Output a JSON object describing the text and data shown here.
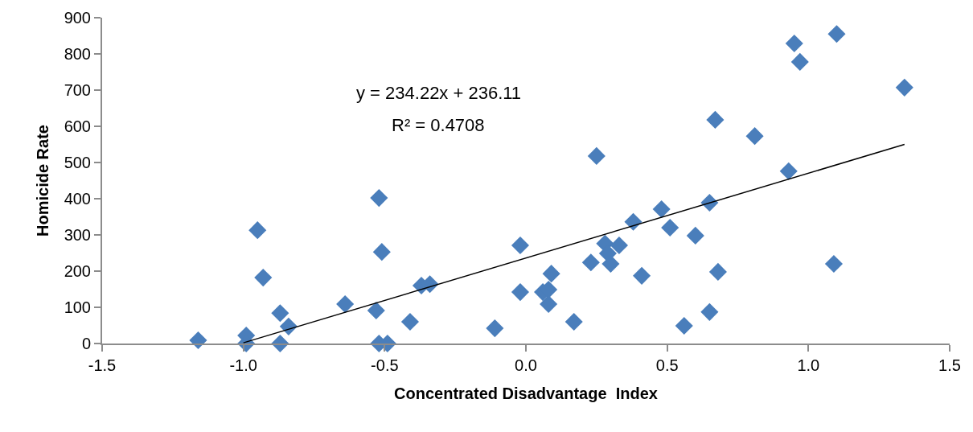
{
  "chart_data": {
    "type": "scatter",
    "xlabel": "Concentrated Disadvantage  Index",
    "ylabel": "Homicide Rate",
    "xlim": [
      -1.5,
      1.5
    ],
    "xticks": [
      {
        "value": -1.5,
        "label": "-1.5"
      },
      {
        "value": -1,
        "label": "-1.0"
      },
      {
        "value": -0.5,
        "label": "-0.5"
      },
      {
        "value": 0,
        "label": "0.0"
      },
      {
        "value": 0.5,
        "label": "0.5"
      },
      {
        "value": 1,
        "label": "1.0"
      },
      {
        "value": 1.5,
        "label": "1.5"
      }
    ],
    "ylim": [
      0,
      900
    ],
    "yticks": [
      0,
      100,
      200,
      300,
      400,
      500,
      600,
      700,
      800,
      900
    ],
    "grid": false,
    "marker": "diamond",
    "series": [
      {
        "color": "#4a7ebb",
        "x": [
          -1.16,
          -0.99,
          -0.99,
          -0.95,
          -0.93,
          -0.87,
          -0.87,
          -0.84,
          -0.64,
          -0.53,
          -0.52,
          -0.51,
          -0.52,
          -0.49,
          -0.41,
          -0.37,
          -0.34,
          -0.11,
          -0.02,
          -0.02,
          0.06,
          0.09,
          0.08,
          0.08,
          0.17,
          0.23,
          0.28,
          0.33,
          0.3,
          0.29,
          0.41,
          0.38,
          0.48,
          0.51,
          0.6,
          0.56,
          0.65,
          0.68,
          0.65,
          0.25,
          0.67,
          0.81,
          0.93,
          0.95,
          0.97,
          1.1,
          1.34,
          1.09
        ],
        "values": [
          9,
          22,
          0,
          313,
          182,
          84,
          0,
          47,
          109,
          91,
          402,
          253,
          0,
          0,
          60,
          160,
          164,
          42,
          271,
          142,
          142,
          193,
          109,
          149,
          60,
          224,
          276,
          271,
          220,
          249,
          187,
          336,
          371,
          320,
          298,
          49,
          87,
          198,
          389,
          518,
          618,
          573,
          476,
          829,
          778,
          855,
          707,
          220
        ]
      },
      {
        "type": "line",
        "color": "#000000",
        "marker": "none",
        "x": [
          -1.0,
          1.34
        ],
        "values": [
          2,
          550
        ]
      }
    ],
    "annotations": [
      "y = 234.22x + 236.11",
      "R² = 0.4708"
    ]
  }
}
